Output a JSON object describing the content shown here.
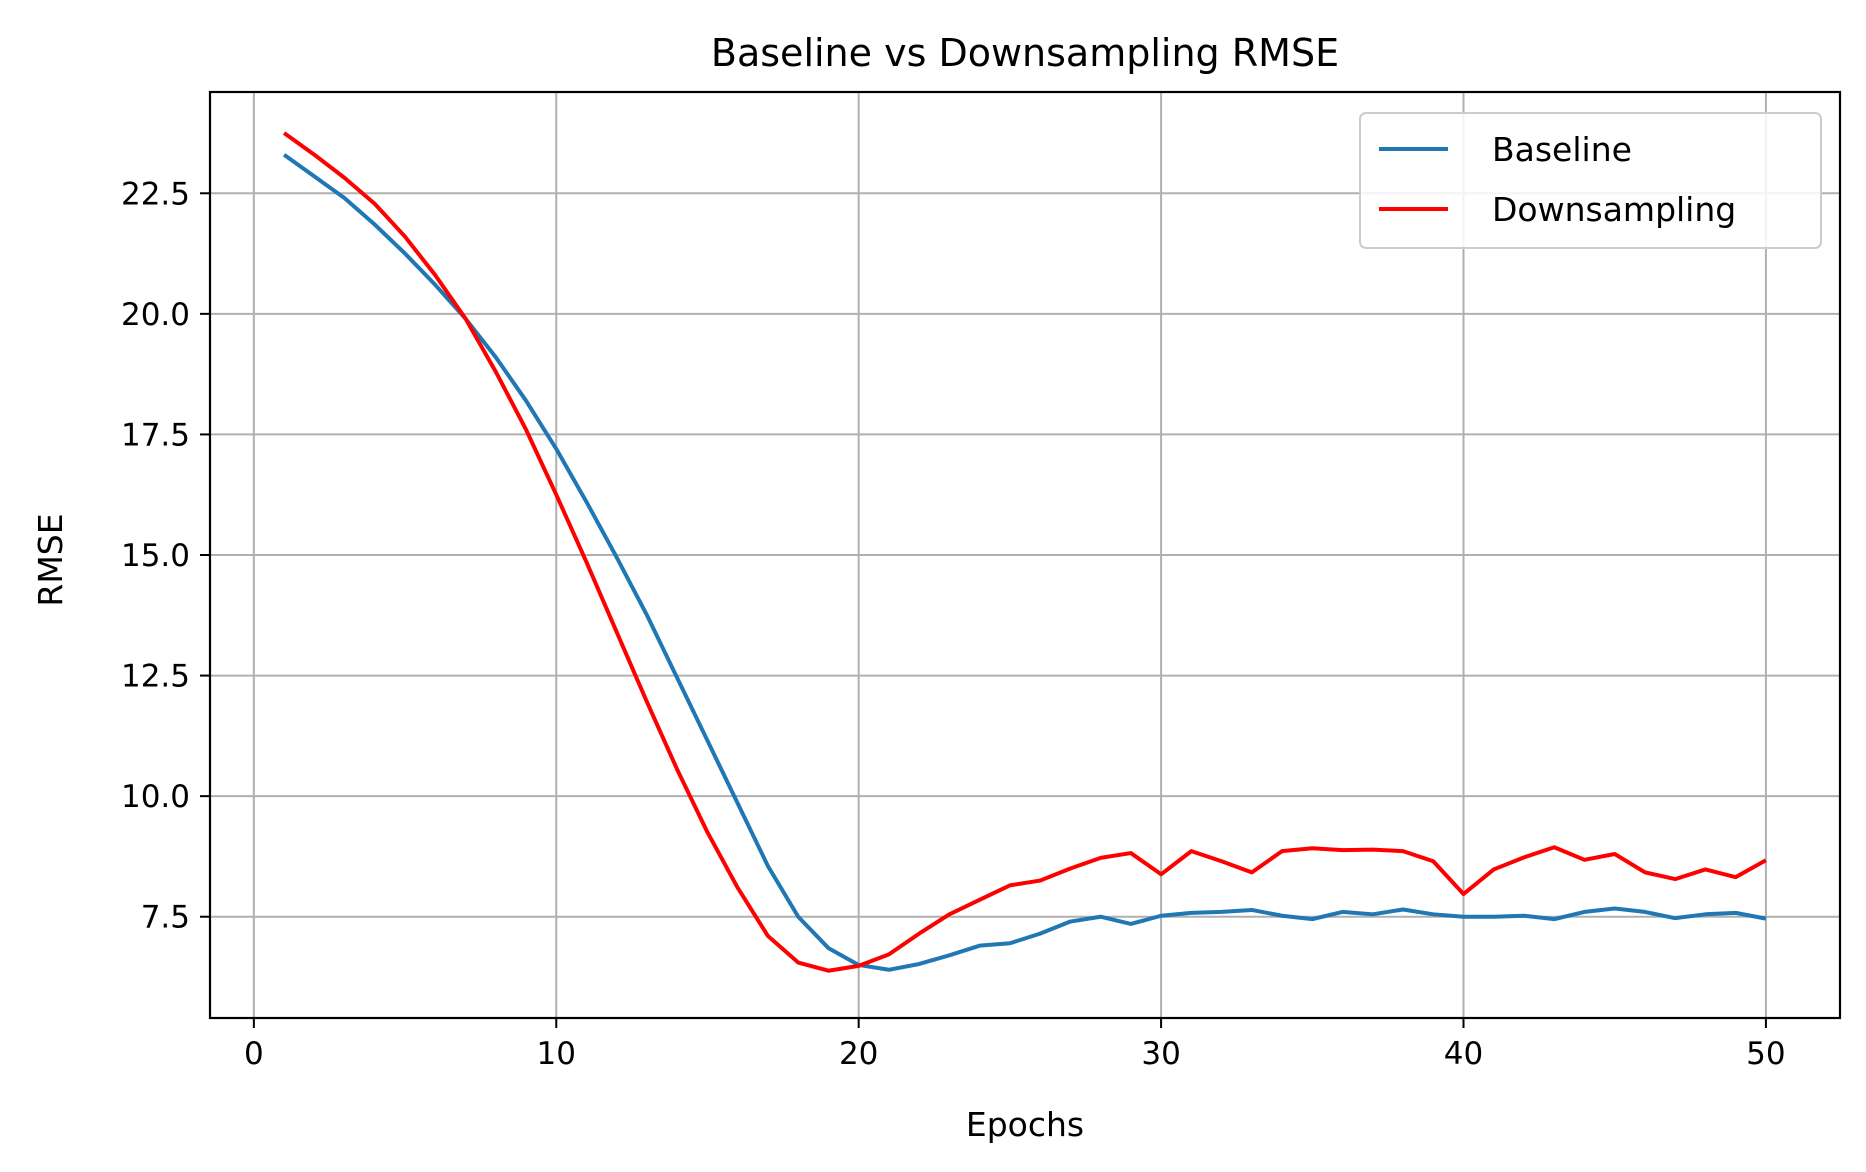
{
  "chart_data": {
    "type": "line",
    "title": "Baseline vs Downsampling RMSE",
    "xlabel": "Epochs",
    "ylabel": "RMSE",
    "xlim": [
      -1.45,
      52.45
    ],
    "ylim": [
      5.4,
      24.6
    ],
    "xticks": [
      0,
      10,
      20,
      30,
      40,
      50
    ],
    "yticks": [
      7.5,
      10.0,
      12.5,
      15.0,
      17.5,
      20.0,
      22.5
    ],
    "ytick_labels": [
      "7.5",
      "10.0",
      "12.5",
      "15.0",
      "17.5",
      "20.0",
      "22.5"
    ],
    "grid": true,
    "legend_position": "top-right",
    "x": [
      1,
      2,
      3,
      4,
      5,
      6,
      7,
      8,
      9,
      10,
      11,
      12,
      13,
      14,
      15,
      16,
      17,
      18,
      19,
      20,
      21,
      22,
      23,
      24,
      25,
      26,
      27,
      28,
      29,
      30,
      31,
      32,
      33,
      34,
      35,
      36,
      37,
      38,
      39,
      40,
      41,
      42,
      43,
      44,
      45,
      46,
      47,
      48,
      49,
      50
    ],
    "series": [
      {
        "name": "Baseline",
        "color": "#1f77b4",
        "values": [
          23.3,
          22.85,
          22.4,
          21.85,
          21.25,
          20.6,
          19.9,
          19.1,
          18.2,
          17.2,
          16.1,
          14.95,
          13.75,
          12.45,
          11.15,
          9.85,
          8.55,
          7.5,
          6.85,
          6.5,
          6.4,
          6.52,
          6.7,
          6.9,
          6.95,
          7.15,
          7.4,
          7.5,
          7.35,
          7.52,
          7.58,
          7.6,
          7.64,
          7.52,
          7.45,
          7.6,
          7.55,
          7.65,
          7.55,
          7.5,
          7.5,
          7.52,
          7.45,
          7.6,
          7.67,
          7.6,
          7.47,
          7.55,
          7.58,
          7.46
        ]
      },
      {
        "name": "Downsampling",
        "color": "#ff0000",
        "values": [
          23.75,
          23.3,
          22.82,
          22.28,
          21.6,
          20.8,
          19.9,
          18.8,
          17.6,
          16.25,
          14.85,
          13.4,
          11.95,
          10.55,
          9.25,
          8.1,
          7.1,
          6.55,
          6.38,
          6.48,
          6.72,
          7.15,
          7.55,
          7.85,
          8.15,
          8.25,
          8.5,
          8.72,
          8.82,
          8.38,
          8.86,
          8.65,
          8.42,
          8.86,
          8.92,
          8.88,
          8.89,
          8.86,
          8.65,
          7.97,
          8.48,
          8.73,
          8.94,
          8.68,
          8.8,
          8.42,
          8.28,
          8.48,
          8.32,
          8.67
        ]
      }
    ]
  }
}
